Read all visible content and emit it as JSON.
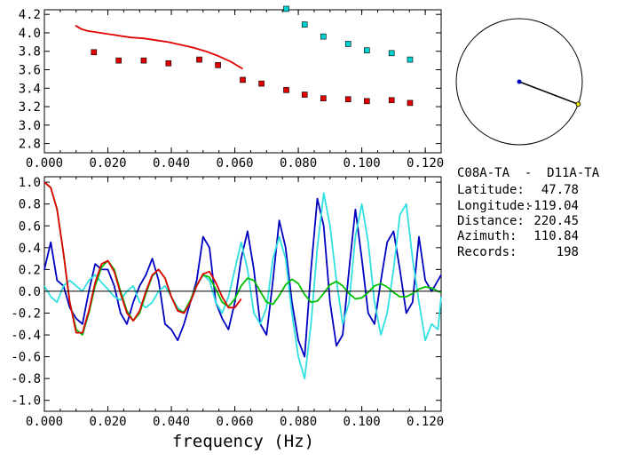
{
  "chart_data": [
    {
      "type": "scatter",
      "description_free": true,
      "xlim": [
        0.0,
        0.125
      ],
      "ylim": [
        2.7,
        4.25
      ],
      "xticks": [
        "0.000",
        "0.020",
        "0.040",
        "0.060",
        "0.080",
        "0.100",
        "0.120"
      ],
      "yticks": [
        "2.8",
        "3.0",
        "3.2",
        "3.4",
        "3.6",
        "3.8",
        "4.0",
        "4.2"
      ],
      "series": [
        {
          "kind": "points",
          "color": "#e00000",
          "marker": "square",
          "x": [
            0.0156,
            0.0234,
            0.0313,
            0.0391,
            0.0488,
            0.0547,
            0.0625,
            0.0684,
            0.0762,
            0.082,
            0.0879,
            0.0957,
            0.1016,
            0.1094,
            0.1152
          ],
          "y": [
            3.79,
            3.7,
            3.7,
            3.67,
            3.71,
            3.65,
            3.49,
            3.45,
            3.38,
            3.33,
            3.29,
            3.28,
            3.26,
            3.27,
            3.24
          ]
        },
        {
          "kind": "points",
          "color": "#00d0d0",
          "marker": "square",
          "x": [
            0.0762,
            0.082,
            0.0879,
            0.0957,
            0.1016,
            0.1094,
            0.1152
          ],
          "y": [
            4.26,
            4.09,
            3.96,
            3.88,
            3.81,
            3.78,
            3.71
          ]
        },
        {
          "kind": "line",
          "color": "#e00000",
          "x": [
            0.0098,
            0.0117,
            0.0137,
            0.0156,
            0.0195,
            0.0234,
            0.0273,
            0.0313,
            0.0352,
            0.0391,
            0.043,
            0.0469,
            0.0508,
            0.0547,
            0.0586,
            0.0625
          ],
          "y": [
            4.08,
            4.04,
            4.02,
            4.01,
            3.99,
            3.97,
            3.95,
            3.94,
            3.92,
            3.9,
            3.87,
            3.84,
            3.8,
            3.75,
            3.69,
            3.61
          ]
        }
      ]
    },
    {
      "type": "line",
      "xlim": [
        0.0,
        0.125
      ],
      "ylim": [
        -1.1,
        1.05
      ],
      "xticks": [
        "0.000",
        "0.020",
        "0.040",
        "0.060",
        "0.080",
        "0.100",
        "0.120"
      ],
      "yticks": [
        "1.0",
        "0.8",
        "0.6",
        "0.4",
        "0.2",
        "0.0",
        "-0.2",
        "-0.4",
        "-0.6",
        "-0.8",
        "-1.0"
      ],
      "xlabel": "frequency (Hz)",
      "series": [
        {
          "color": "#0000c0",
          "x": [
            0.0,
            0.002,
            0.004,
            0.006,
            0.008,
            0.01,
            0.012,
            0.014,
            0.016,
            0.018,
            0.02,
            0.022,
            0.024,
            0.026,
            0.028,
            0.03,
            0.032,
            0.034,
            0.036,
            0.038,
            0.04,
            0.042,
            0.044,
            0.046,
            0.048,
            0.05,
            0.052,
            0.054,
            0.056,
            0.058,
            0.06,
            0.062,
            0.064,
            0.066,
            0.068,
            0.07,
            0.072,
            0.074,
            0.076,
            0.078,
            0.08,
            0.082,
            0.084,
            0.086,
            0.088,
            0.09,
            0.092,
            0.094,
            0.096,
            0.098,
            0.1,
            0.102,
            0.104,
            0.106,
            0.108,
            0.11,
            0.112,
            0.114,
            0.116,
            0.118,
            0.12,
            0.122,
            0.124,
            0.125
          ],
          "y": [
            0.2,
            0.45,
            0.1,
            0.05,
            -0.15,
            -0.25,
            -0.3,
            0.0,
            0.25,
            0.2,
            0.2,
            0.05,
            -0.2,
            -0.3,
            -0.1,
            0.05,
            0.15,
            0.3,
            0.1,
            -0.3,
            -0.35,
            -0.45,
            -0.3,
            -0.1,
            0.1,
            0.5,
            0.4,
            -0.1,
            -0.25,
            -0.35,
            -0.1,
            0.3,
            0.55,
            0.2,
            -0.3,
            -0.4,
            0.1,
            0.65,
            0.4,
            -0.1,
            -0.45,
            -0.6,
            0.2,
            0.85,
            0.6,
            -0.1,
            -0.5,
            -0.4,
            0.2,
            0.75,
            0.3,
            -0.2,
            -0.3,
            0.1,
            0.45,
            0.55,
            0.2,
            -0.2,
            -0.1,
            0.5,
            0.1,
            0.0,
            0.1,
            0.15
          ]
        },
        {
          "color": "#30e0e0",
          "x": [
            0.0,
            0.002,
            0.004,
            0.006,
            0.008,
            0.01,
            0.012,
            0.014,
            0.016,
            0.018,
            0.02,
            0.022,
            0.024,
            0.026,
            0.028,
            0.03,
            0.032,
            0.034,
            0.036,
            0.038,
            0.04,
            0.042,
            0.044,
            0.046,
            0.048,
            0.05,
            0.052,
            0.054,
            0.056,
            0.058,
            0.06,
            0.062,
            0.064,
            0.066,
            0.068,
            0.07,
            0.072,
            0.074,
            0.076,
            0.078,
            0.08,
            0.082,
            0.084,
            0.086,
            0.088,
            0.09,
            0.092,
            0.094,
            0.096,
            0.098,
            0.1,
            0.102,
            0.104,
            0.106,
            0.108,
            0.11,
            0.112,
            0.114,
            0.116,
            0.118,
            0.12,
            0.122,
            0.124,
            0.125
          ],
          "y": [
            0.05,
            -0.05,
            -0.1,
            0.05,
            0.1,
            0.05,
            0.0,
            0.1,
            0.15,
            0.08,
            0.02,
            -0.05,
            -0.08,
            0.0,
            0.05,
            -0.1,
            -0.15,
            -0.1,
            0.0,
            0.05,
            -0.05,
            -0.15,
            -0.2,
            -0.1,
            0.05,
            0.15,
            0.1,
            -0.1,
            -0.2,
            -0.05,
            0.2,
            0.45,
            0.2,
            -0.2,
            -0.3,
            -0.15,
            0.3,
            0.5,
            0.3,
            -0.2,
            -0.6,
            -0.8,
            -0.3,
            0.4,
            0.9,
            0.6,
            0.1,
            -0.3,
            -0.1,
            0.5,
            0.8,
            0.45,
            -0.1,
            -0.4,
            -0.2,
            0.2,
            0.7,
            0.8,
            0.3,
            -0.1,
            -0.45,
            -0.3,
            -0.35,
            -0.05
          ]
        },
        {
          "color": "#00c000",
          "x": [
            0.0,
            0.002,
            0.004,
            0.006,
            0.008,
            0.01,
            0.012,
            0.014,
            0.016,
            0.018,
            0.02,
            0.022,
            0.024,
            0.026,
            0.028,
            0.03,
            0.032,
            0.034,
            0.036,
            0.038,
            0.04,
            0.042,
            0.044,
            0.046,
            0.048,
            0.05,
            0.052,
            0.054,
            0.056,
            0.058,
            0.06,
            0.062,
            0.064,
            0.066,
            0.068,
            0.07,
            0.072,
            0.074,
            0.076,
            0.078,
            0.08,
            0.082,
            0.084,
            0.086,
            0.088,
            0.09,
            0.092,
            0.094,
            0.096,
            0.098,
            0.1,
            0.102,
            0.104,
            0.106,
            0.108,
            0.11,
            0.112,
            0.114,
            0.116,
            0.118,
            0.12,
            0.122,
            0.124,
            0.125
          ],
          "y": [
            1.0,
            0.95,
            0.75,
            0.35,
            -0.1,
            -0.35,
            -0.4,
            -0.2,
            0.05,
            0.22,
            0.28,
            0.2,
            0.0,
            -0.18,
            -0.27,
            -0.2,
            -0.02,
            0.14,
            0.2,
            0.12,
            -0.05,
            -0.17,
            -0.19,
            -0.08,
            0.06,
            0.15,
            0.13,
            0.02,
            -0.1,
            -0.14,
            -0.07,
            0.05,
            0.12,
            0.1,
            0.0,
            -0.1,
            -0.12,
            -0.04,
            0.06,
            0.11,
            0.07,
            -0.03,
            -0.1,
            -0.09,
            -0.02,
            0.06,
            0.09,
            0.05,
            -0.02,
            -0.07,
            -0.06,
            -0.01,
            0.05,
            0.07,
            0.04,
            -0.01,
            -0.05,
            -0.05,
            -0.02,
            0.02,
            0.04,
            0.03,
            0.0,
            -0.01
          ]
        },
        {
          "color": "#e00000",
          "x": [
            0.0,
            0.002,
            0.004,
            0.006,
            0.008,
            0.01,
            0.012,
            0.014,
            0.016,
            0.018,
            0.02,
            0.022,
            0.024,
            0.026,
            0.028,
            0.03,
            0.032,
            0.034,
            0.036,
            0.038,
            0.04,
            0.042,
            0.044,
            0.046,
            0.048,
            0.05,
            0.052,
            0.054,
            0.056,
            0.058,
            0.06,
            0.062
          ],
          "y": [
            1.0,
            0.95,
            0.75,
            0.35,
            -0.1,
            -0.38,
            -0.38,
            -0.18,
            0.08,
            0.25,
            0.28,
            0.18,
            -0.02,
            -0.2,
            -0.27,
            -0.18,
            0.0,
            0.15,
            0.2,
            0.12,
            -0.05,
            -0.18,
            -0.2,
            -0.1,
            0.05,
            0.16,
            0.18,
            0.08,
            -0.05,
            -0.15,
            -0.15,
            -0.07
          ]
        },
        {
          "kind": "zero-line",
          "color": "#000000",
          "x": [
            0.0,
            0.125
          ],
          "y": [
            0.0,
            0.0
          ]
        }
      ]
    },
    {
      "type": "polar-azimuth",
      "azimuth_deg": 110.84,
      "distance": 220.45,
      "colors": {
        "circle": "#000000",
        "center": "#0000c0",
        "tip": "#e0e000",
        "line": "#000000"
      }
    }
  ],
  "info": {
    "title": "C08A-TA  -  D11A-TA",
    "rows": [
      {
        "label": "Latitude:",
        "value": "47.78"
      },
      {
        "label": "Longitude:",
        "value": "-119.04"
      },
      {
        "label": "Distance:",
        "value": "220.45"
      },
      {
        "label": "Azimuth:",
        "value": "110.84"
      },
      {
        "label": "Records:",
        "value": "198"
      }
    ]
  }
}
